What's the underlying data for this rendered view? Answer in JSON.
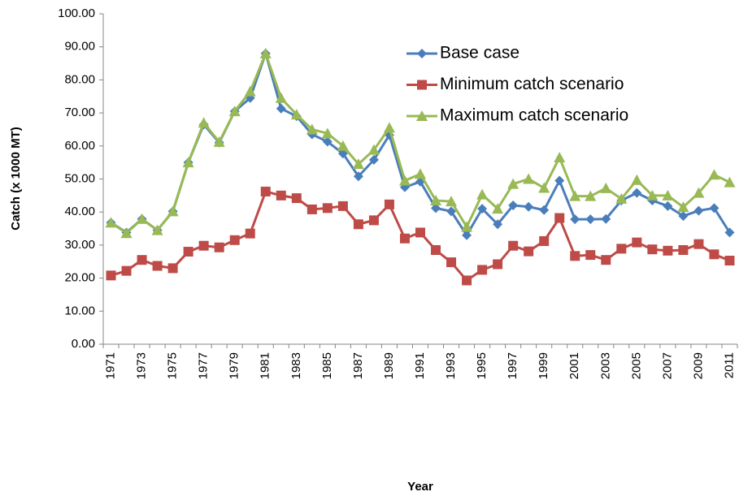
{
  "chart_data": {
    "type": "line",
    "x_label": "Year",
    "y_label": "Catch (x 1000 MT)",
    "categories": [
      "1971",
      null,
      "1973",
      null,
      "1975",
      null,
      "1977",
      null,
      "1979",
      null,
      "1981",
      null,
      "1983",
      null,
      "1985",
      null,
      "1987",
      null,
      "1989",
      null,
      "1991",
      null,
      "1993",
      null,
      "1995",
      null,
      "1997",
      null,
      "1999",
      null,
      "2001",
      null,
      "2003",
      null,
      "2005",
      null,
      "2007",
      null,
      "2009",
      null,
      "2011"
    ],
    "series": [
      {
        "name": "Base case",
        "color": "#4a7ebb",
        "marker": "diamond",
        "values": [
          36.8,
          33.8,
          37.9,
          34.5,
          40.2,
          55.0,
          66.5,
          61.0,
          70.5,
          74.5,
          88.0,
          71.3,
          69.0,
          63.5,
          61.3,
          57.7,
          50.8,
          55.8,
          63.3,
          47.5,
          49.2,
          41.2,
          40.2,
          33.0,
          41.0,
          36.3,
          42.0,
          41.6,
          40.6,
          49.5,
          37.8,
          37.8,
          37.9,
          43.5,
          45.8,
          43.5,
          41.8,
          38.8,
          40.4,
          41.2,
          33.8
        ]
      },
      {
        "name": "Minimum catch scenario",
        "color": "#be4b48",
        "marker": "square",
        "values": [
          20.8,
          22.2,
          25.5,
          23.7,
          23.0,
          28.0,
          29.8,
          29.3,
          31.5,
          33.5,
          46.2,
          45.0,
          44.2,
          40.8,
          41.2,
          41.8,
          36.3,
          37.5,
          42.3,
          32.0,
          33.8,
          28.5,
          24.8,
          19.3,
          22.5,
          24.2,
          29.8,
          28.1,
          31.2,
          38.2,
          26.7,
          27.0,
          25.5,
          28.9,
          30.8,
          28.7,
          28.3,
          28.5,
          30.3,
          27.2,
          25.3
        ]
      },
      {
        "name": "Maximum catch scenario",
        "color": "#98b954",
        "marker": "triangle",
        "values": [
          36.8,
          33.6,
          37.9,
          34.5,
          40.2,
          55.0,
          67.0,
          61.2,
          70.5,
          76.5,
          88.0,
          74.5,
          69.5,
          65.0,
          63.8,
          60.0,
          54.5,
          58.8,
          65.5,
          49.5,
          51.5,
          43.5,
          43.2,
          35.5,
          45.3,
          41.0,
          48.5,
          50.0,
          47.3,
          56.5,
          44.8,
          44.8,
          47.2,
          44.0,
          49.7,
          45.0,
          45.0,
          41.5,
          45.8,
          51.3,
          49.0
        ]
      }
    ],
    "ylim": [
      0,
      100
    ],
    "yticks": [
      {
        "value": 0,
        "label": "0.00"
      },
      {
        "value": 10,
        "label": "10.00"
      },
      {
        "value": 20,
        "label": "20.00"
      },
      {
        "value": 30,
        "label": "30.00"
      },
      {
        "value": 40,
        "label": "40.00"
      },
      {
        "value": 50,
        "label": "50.00"
      },
      {
        "value": 60,
        "label": "60.00"
      },
      {
        "value": 70,
        "label": "70.00"
      },
      {
        "value": 80,
        "label": "80.00"
      },
      {
        "value": 90,
        "label": "90.00"
      },
      {
        "value": 100,
        "label": "100.00"
      }
    ],
    "grid": false,
    "legend": "top-center"
  }
}
